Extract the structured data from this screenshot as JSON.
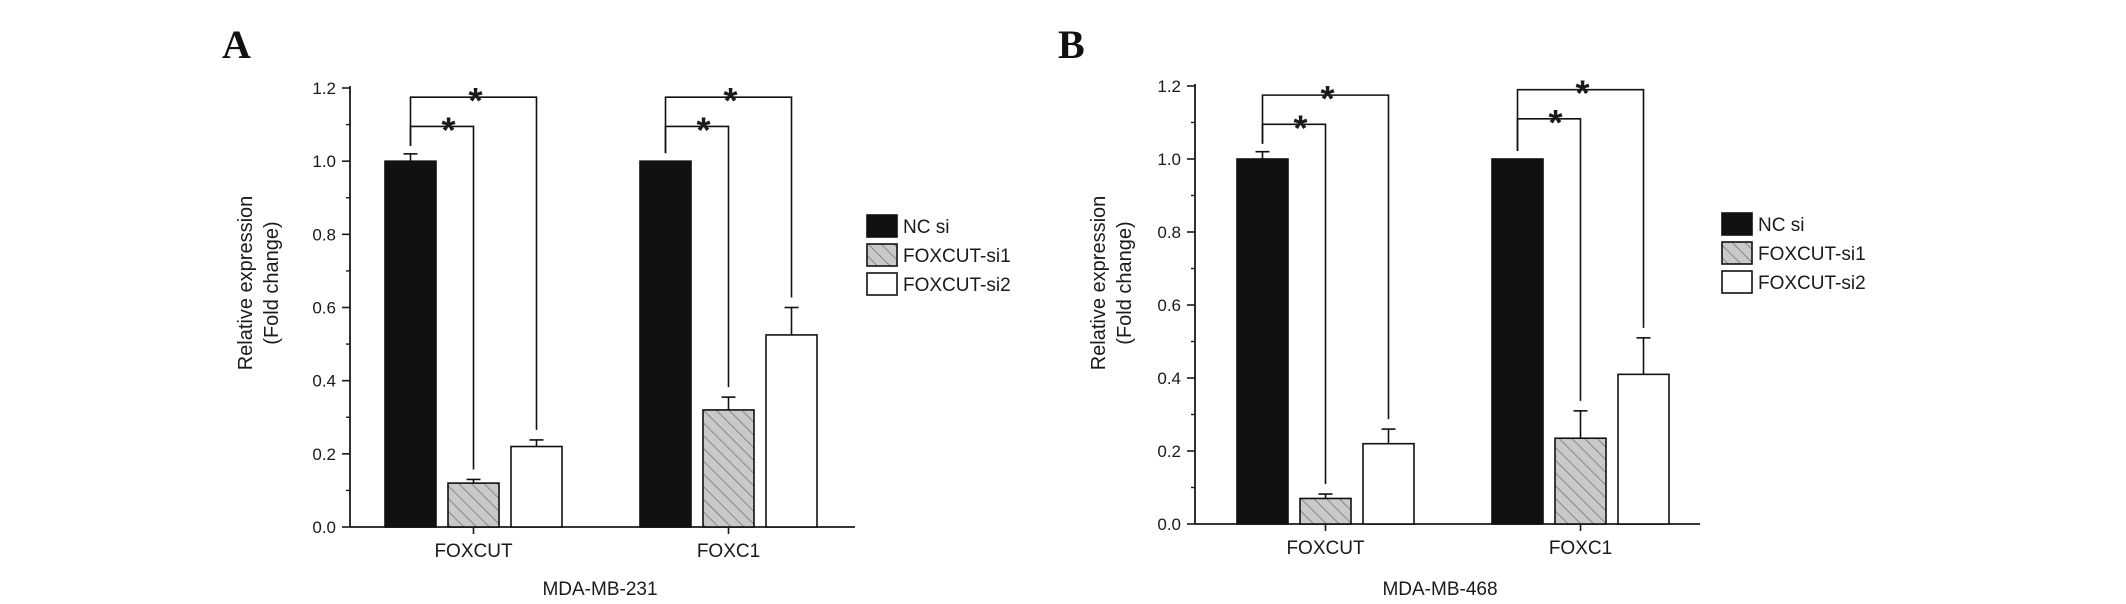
{
  "chart_data": [
    {
      "type": "bar",
      "panel_label": "A",
      "xlabel": "MDA-MB-231",
      "ylabel": [
        "Relative expression",
        "(Fold change)"
      ],
      "ylim": [
        0.0,
        1.2
      ],
      "yticks": [
        "0.0",
        "0.2",
        "0.4",
        "0.6",
        "0.8",
        "1.0",
        "1.2"
      ],
      "categories": [
        "FOXCUT",
        "FOXC1"
      ],
      "series": [
        {
          "name": "NC si",
          "values": [
            1.0,
            1.0
          ],
          "errors": [
            0.02,
            0.0
          ]
        },
        {
          "name": "FOXCUT-si1",
          "values": [
            0.12,
            0.32
          ],
          "errors": [
            0.01,
            0.035
          ]
        },
        {
          "name": "FOXCUT-si2",
          "values": [
            0.22,
            0.525
          ],
          "errors": [
            0.018,
            0.075
          ]
        }
      ],
      "significance": [
        {
          "group": 0,
          "from": 0,
          "to": 1,
          "level": 1.095,
          "label": "*"
        },
        {
          "group": 0,
          "from": 0,
          "to": 2,
          "level": 1.175,
          "label": "*"
        },
        {
          "group": 1,
          "from": 0,
          "to": 1,
          "level": 1.095,
          "label": "*"
        },
        {
          "group": 1,
          "from": 0,
          "to": 2,
          "level": 1.175,
          "label": "*"
        }
      ],
      "legend_position": "right"
    },
    {
      "type": "bar",
      "panel_label": "B",
      "xlabel": "MDA-MB-468",
      "ylabel": [
        "Relative expression",
        "(Fold change)"
      ],
      "ylim": [
        0.0,
        1.2
      ],
      "yticks": [
        "0.0",
        "0.2",
        "0.4",
        "0.6",
        "0.8",
        "1.0",
        "1.2"
      ],
      "categories": [
        "FOXCUT",
        "FOXC1"
      ],
      "series": [
        {
          "name": "NC si",
          "values": [
            1.0,
            1.0
          ],
          "errors": [
            0.02,
            0.0
          ]
        },
        {
          "name": "FOXCUT-si1",
          "values": [
            0.07,
            0.235
          ],
          "errors": [
            0.012,
            0.075
          ]
        },
        {
          "name": "FOXCUT-si2",
          "values": [
            0.22,
            0.41
          ],
          "errors": [
            0.04,
            0.1
          ]
        }
      ],
      "significance": [
        {
          "group": 0,
          "from": 0,
          "to": 1,
          "level": 1.095,
          "label": "*"
        },
        {
          "group": 0,
          "from": 0,
          "to": 2,
          "level": 1.175,
          "label": "*"
        },
        {
          "group": 1,
          "from": 0,
          "to": 1,
          "level": 1.11,
          "label": "*"
        },
        {
          "group": 1,
          "from": 0,
          "to": 2,
          "level": 1.19,
          "label": "*"
        }
      ],
      "legend_position": "right"
    }
  ],
  "colors": {
    "NC si": "#111111",
    "FOXCUT-si1": "#c9c9c9",
    "FOXCUT-si2": "#ffffff",
    "axis": "#1a1a1a"
  }
}
